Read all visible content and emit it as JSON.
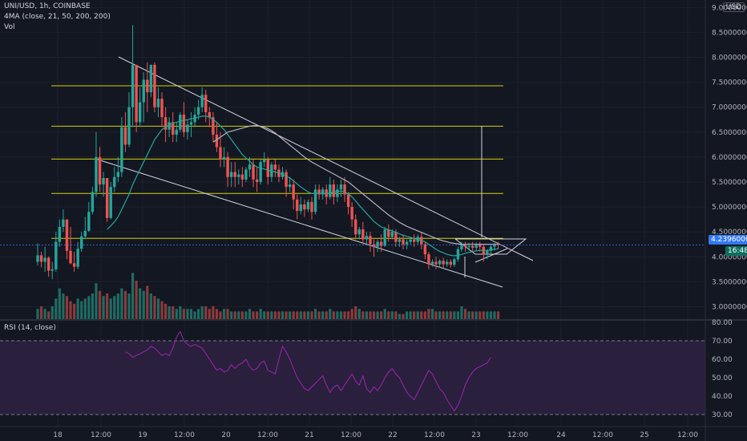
{
  "header": {
    "symbol_line": "UNI/USD, 1h, COINBASE",
    "ma_line": "4MA (close, 21, 50, 200, 200)",
    "vol_line": "Vol",
    "rsi_line": "RSI (14, close)",
    "currency": "USD"
  },
  "badges": {
    "last_price": "4.23960000",
    "countdown": "16:48"
  },
  "colors": {
    "background": "#131722",
    "up": "#26a69a",
    "down": "#ef5350",
    "horizontal_levels": "#d4d000",
    "trendlines": "#d1d4dc",
    "ma_fast": "#26a69a",
    "ma_slow": "#b2b5be",
    "rsi_line": "#9c27b0",
    "rsi_band": "#2a1f3d",
    "last_price": "#3179f5"
  },
  "chart_data": {
    "type": "candlestick",
    "price_axis": {
      "ticks": [
        "9.00000000",
        "8.50000000",
        "8.00000000",
        "7.50000000",
        "7.00000000",
        "6.50000000",
        "6.00000000",
        "5.50000000",
        "5.00000000",
        "4.50000000",
        "4.00000000",
        "3.50000000",
        "3.00000000"
      ],
      "range": [
        2.75,
        9.15
      ]
    },
    "time_axis": {
      "ticks": [
        "18",
        "12:00",
        "19",
        "12:00",
        "20",
        "12:00",
        "21",
        "12:00",
        "22",
        "12:00",
        "23",
        "12:00",
        "24",
        "12:00",
        "25",
        "12:00"
      ]
    },
    "rsi_axis": {
      "ticks": [
        "80.00",
        "70.00",
        "60.00",
        "50.00",
        "40.00",
        "30.00"
      ],
      "range": [
        30,
        80
      ],
      "band": [
        30,
        70
      ]
    },
    "horizontal_levels": [
      7.43,
      6.62,
      5.96,
      5.27,
      4.37
    ],
    "last_price": 4.2396,
    "candles": [
      [
        3.9,
        4.27,
        4.03,
        3.83
      ],
      [
        4.03,
        4.1,
        3.9,
        3.79
      ],
      [
        3.9,
        4.2,
        3.98,
        3.7
      ],
      [
        3.98,
        4.01,
        3.72,
        3.6
      ],
      [
        3.72,
        3.9,
        3.75,
        3.55
      ],
      [
        3.75,
        4.5,
        4.3,
        3.7
      ],
      [
        4.3,
        4.75,
        4.6,
        4.2
      ],
      [
        4.6,
        4.95,
        4.75,
        4.5
      ],
      [
        4.75,
        4.6,
        4.12,
        3.95
      ],
      [
        4.12,
        4.6,
        3.87,
        3.85
      ],
      [
        3.87,
        4.1,
        3.8,
        3.7
      ],
      [
        3.8,
        4.3,
        4.16,
        3.75
      ],
      [
        4.16,
        4.5,
        4.41,
        4.1
      ],
      [
        4.41,
        4.8,
        4.52,
        4.35
      ],
      [
        4.52,
        5.1,
        4.9,
        4.5
      ],
      [
        4.9,
        5.4,
        5.3,
        4.85
      ],
      [
        5.3,
        6.5,
        6.0,
        5.2
      ],
      [
        6.0,
        6.2,
        5.45,
        5.3
      ],
      [
        5.45,
        5.7,
        5.58,
        5.2
      ],
      [
        5.58,
        5.4,
        4.78,
        4.7
      ],
      [
        4.78,
        5.5,
        5.4,
        4.75
      ],
      [
        5.4,
        5.8,
        5.6,
        5.3
      ],
      [
        5.6,
        6.0,
        5.7,
        5.5
      ],
      [
        5.7,
        6.8,
        6.6,
        5.6
      ],
      [
        6.6,
        6.9,
        6.25,
        6.1
      ],
      [
        6.25,
        7.3,
        7.0,
        6.2
      ],
      [
        7.0,
        8.65,
        7.85,
        6.6
      ],
      [
        7.85,
        7.7,
        6.7,
        6.5
      ],
      [
        6.7,
        7.4,
        7.1,
        6.6
      ],
      [
        7.1,
        7.7,
        7.55,
        6.7
      ],
      [
        7.55,
        7.9,
        7.3,
        6.9
      ],
      [
        7.3,
        7.85,
        7.85,
        7.2
      ],
      [
        7.85,
        7.9,
        7.0,
        6.9
      ],
      [
        7.0,
        7.4,
        7.17,
        6.8
      ],
      [
        7.17,
        7.3,
        6.8,
        6.6
      ],
      [
        6.8,
        7.0,
        6.55,
        6.3
      ],
      [
        6.55,
        6.8,
        6.7,
        6.4
      ],
      [
        6.7,
        6.9,
        6.45,
        6.3
      ],
      [
        6.45,
        6.7,
        6.55,
        6.3
      ],
      [
        6.55,
        6.9,
        6.85,
        6.5
      ],
      [
        6.85,
        7.1,
        6.5,
        6.4
      ],
      [
        6.5,
        6.75,
        6.65,
        6.35
      ],
      [
        6.65,
        6.9,
        6.7,
        6.4
      ],
      [
        6.7,
        7.0,
        6.85,
        6.6
      ],
      [
        6.85,
        7.15,
        7.0,
        6.75
      ],
      [
        7.0,
        7.4,
        7.25,
        6.9
      ],
      [
        7.25,
        7.35,
        6.9,
        6.7
      ],
      [
        6.9,
        7.0,
        6.8,
        6.6
      ],
      [
        6.8,
        6.9,
        6.45,
        6.3
      ],
      [
        6.45,
        6.7,
        6.2,
        6.1
      ],
      [
        6.2,
        6.5,
        5.95,
        5.8
      ],
      [
        5.95,
        6.2,
        6.0,
        5.8
      ],
      [
        6.0,
        6.1,
        5.6,
        5.4
      ],
      [
        5.6,
        5.9,
        5.7,
        5.4
      ],
      [
        5.7,
        5.9,
        5.6,
        5.4
      ],
      [
        5.6,
        5.75,
        5.65,
        5.45
      ],
      [
        5.65,
        5.8,
        5.55,
        5.4
      ],
      [
        5.55,
        5.8,
        5.75,
        5.5
      ],
      [
        5.75,
        6.0,
        5.85,
        5.6
      ],
      [
        5.85,
        5.95,
        5.55,
        5.4
      ],
      [
        5.55,
        5.8,
        5.5,
        5.3
      ],
      [
        5.5,
        5.95,
        5.9,
        5.45
      ],
      [
        5.9,
        6.1,
        5.95,
        5.8
      ],
      [
        5.95,
        6.0,
        5.6,
        5.45
      ],
      [
        5.6,
        5.9,
        5.85,
        5.5
      ],
      [
        5.85,
        5.95,
        5.75,
        5.6
      ],
      [
        5.75,
        5.85,
        5.6,
        5.5
      ],
      [
        5.6,
        5.8,
        5.7,
        5.55
      ],
      [
        5.7,
        5.75,
        5.4,
        5.2
      ],
      [
        5.4,
        5.6,
        5.45,
        5.3
      ],
      [
        5.45,
        5.55,
        5.15,
        4.95
      ],
      [
        5.15,
        5.25,
        4.92,
        4.75
      ],
      [
        4.92,
        5.2,
        5.05,
        4.85
      ],
      [
        5.05,
        5.15,
        4.95,
        4.8
      ],
      [
        4.95,
        5.15,
        5.1,
        4.9
      ],
      [
        5.1,
        5.2,
        4.9,
        4.75
      ],
      [
        4.9,
        5.45,
        5.35,
        4.85
      ],
      [
        5.35,
        5.45,
        5.25,
        5.15
      ],
      [
        5.25,
        5.4,
        5.35,
        5.15
      ],
      [
        5.35,
        5.45,
        5.2,
        5.05
      ],
      [
        5.2,
        5.6,
        5.45,
        5.15
      ],
      [
        5.45,
        5.55,
        5.2,
        5.05
      ],
      [
        5.2,
        5.45,
        5.35,
        5.1
      ],
      [
        5.35,
        5.55,
        5.45,
        5.2
      ],
      [
        5.45,
        5.6,
        5.25,
        5.1
      ],
      [
        5.25,
        5.3,
        5.0,
        4.85
      ],
      [
        5.0,
        5.1,
        4.75,
        4.6
      ],
      [
        4.75,
        4.85,
        4.45,
        4.35
      ],
      [
        4.45,
        4.6,
        4.55,
        4.35
      ],
      [
        4.55,
        4.7,
        4.35,
        4.25
      ],
      [
        4.35,
        4.5,
        4.42,
        4.25
      ],
      [
        4.42,
        4.5,
        4.25,
        4.1
      ],
      [
        4.25,
        4.35,
        4.2,
        4.0
      ],
      [
        4.2,
        4.35,
        4.3,
        4.1
      ],
      [
        4.3,
        4.45,
        4.22,
        4.1
      ],
      [
        4.22,
        4.6,
        4.55,
        4.2
      ],
      [
        4.55,
        4.65,
        4.4,
        4.3
      ],
      [
        4.4,
        4.55,
        4.5,
        4.35
      ],
      [
        4.5,
        4.55,
        4.3,
        4.2
      ],
      [
        4.3,
        4.4,
        4.35,
        4.2
      ],
      [
        4.35,
        4.45,
        4.25,
        4.15
      ],
      [
        4.25,
        4.35,
        4.3,
        4.15
      ],
      [
        4.3,
        4.4,
        4.35,
        4.25
      ],
      [
        4.35,
        4.45,
        4.3,
        4.2
      ],
      [
        4.3,
        4.45,
        4.4,
        4.25
      ],
      [
        4.4,
        4.5,
        4.25,
        4.15
      ],
      [
        4.25,
        4.3,
        4.05,
        3.95
      ],
      [
        4.05,
        4.1,
        3.85,
        3.75
      ],
      [
        3.85,
        3.95,
        3.9,
        3.8
      ],
      [
        3.9,
        4.0,
        3.85,
        3.75
      ],
      [
        3.85,
        3.95,
        3.92,
        3.8
      ],
      [
        3.92,
        3.98,
        3.85,
        3.78
      ],
      [
        3.85,
        3.95,
        3.9,
        3.8
      ],
      [
        3.9,
        3.95,
        3.84,
        3.78
      ],
      [
        3.84,
        3.98,
        3.95,
        3.8
      ],
      [
        3.95,
        4.2,
        4.15,
        3.9
      ],
      [
        4.15,
        4.3,
        4.25,
        4.1
      ],
      [
        4.25,
        4.3,
        4.2,
        4.1
      ],
      [
        4.2,
        4.28,
        4.22,
        4.12
      ],
      [
        4.22,
        4.3,
        4.18,
        4.1
      ],
      [
        4.18,
        4.28,
        4.24,
        4.12
      ],
      [
        4.24,
        4.3,
        4.2,
        4.1
      ],
      [
        4.2,
        4.25,
        4.05,
        3.9
      ],
      [
        4.05,
        4.15,
        4.12,
        3.95
      ],
      [
        4.12,
        4.25,
        4.2,
        4.05
      ],
      [
        4.2,
        4.28,
        4.25,
        4.12
      ],
      [
        4.25,
        4.3,
        4.24,
        4.15
      ]
    ],
    "volumes": [
      4,
      5,
      4,
      3,
      5,
      8,
      12,
      10,
      9,
      7,
      6,
      8,
      7,
      8,
      9,
      10,
      14,
      11,
      9,
      10,
      8,
      9,
      10,
      12,
      11,
      10,
      18,
      15,
      12,
      11,
      13,
      10,
      9,
      8,
      7,
      6,
      5,
      5,
      4,
      5,
      4,
      4,
      4,
      3,
      4,
      5,
      5,
      4,
      5,
      4,
      3,
      4,
      4,
      3,
      3,
      3,
      3,
      3,
      4,
      3,
      3,
      4,
      3,
      3,
      3,
      3,
      3,
      3,
      3,
      3,
      3,
      3,
      3,
      3,
      3,
      3,
      4,
      3,
      3,
      3,
      4,
      3,
      3,
      3,
      3,
      3,
      4,
      5,
      4,
      3,
      3,
      3,
      3,
      3,
      3,
      4,
      3,
      3,
      3,
      2,
      2,
      3,
      3,
      3,
      3,
      3,
      3,
      4,
      4,
      3,
      3,
      3,
      3,
      3,
      3,
      3,
      5,
      4,
      3,
      3,
      3,
      3,
      3,
      3,
      3,
      3,
      3
    ],
    "ma_fast": [
      null,
      null,
      null,
      null,
      null,
      null,
      null,
      null,
      null,
      null,
      null,
      null,
      null,
      null,
      null,
      null,
      null,
      null,
      null,
      4.55,
      4.62,
      4.7,
      4.8,
      4.95,
      5.1,
      5.25,
      5.45,
      5.6,
      5.75,
      5.9,
      6.05,
      6.2,
      6.35,
      6.45,
      6.55,
      6.6,
      6.65,
      6.68,
      6.7,
      6.72,
      6.74,
      6.75,
      6.77,
      6.78,
      6.8,
      6.82,
      6.82,
      6.8,
      6.75,
      6.7,
      6.62,
      6.55,
      6.45,
      6.35,
      6.25,
      6.15,
      6.05,
      5.98,
      5.92,
      5.85,
      5.8,
      5.78,
      5.76,
      5.74,
      5.72,
      5.7,
      5.68,
      5.65,
      5.62,
      5.58,
      5.52,
      5.46,
      5.4,
      5.35,
      5.3,
      5.27,
      5.27,
      5.27,
      5.27,
      5.27,
      5.28,
      5.3,
      5.31,
      5.32,
      5.3,
      5.26,
      5.2,
      5.12,
      5.03,
      4.95,
      4.87,
      4.79,
      4.71,
      4.65,
      4.6,
      4.57,
      4.54,
      4.52,
      4.49,
      4.46,
      4.43,
      4.41,
      4.39,
      4.37,
      4.35,
      4.33,
      4.3,
      4.25,
      4.2,
      4.15,
      4.11,
      4.08,
      4.05,
      4.03,
      4.02,
      4.03,
      4.05,
      4.07,
      4.09,
      4.1,
      4.12,
      4.13,
      4.13,
      4.13,
      4.14,
      4.15,
      4.16
    ],
    "ma_slow": [
      null,
      null,
      null,
      null,
      null,
      null,
      null,
      null,
      null,
      null,
      null,
      null,
      null,
      null,
      null,
      null,
      null,
      null,
      null,
      null,
      null,
      null,
      null,
      null,
      null,
      null,
      null,
      null,
      null,
      null,
      null,
      null,
      null,
      null,
      null,
      null,
      null,
      null,
      null,
      null,
      null,
      null,
      null,
      null,
      null,
      null,
      null,
      null,
      6.3,
      6.35,
      6.4,
      6.45,
      6.5,
      6.52,
      6.54,
      6.56,
      6.58,
      6.6,
      6.62,
      6.63,
      6.63,
      6.62,
      6.6,
      6.57,
      6.53,
      6.48,
      6.42,
      6.36,
      6.3,
      6.24,
      6.18,
      6.12,
      6.06,
      6.0,
      5.95,
      5.9,
      5.86,
      5.82,
      5.78,
      5.74,
      5.7,
      5.66,
      5.62,
      5.58,
      5.54,
      5.5,
      5.44,
      5.38,
      5.32,
      5.26,
      5.2,
      5.14,
      5.08,
      5.02,
      4.96,
      4.9,
      4.84,
      4.79,
      4.74,
      4.69,
      4.65,
      4.61,
      4.58,
      4.55,
      4.52,
      4.49,
      4.46,
      4.43,
      4.4,
      4.37,
      4.34,
      4.32,
      4.3,
      4.28,
      4.27,
      4.26,
      4.25,
      4.25,
      4.25,
      4.25,
      4.25,
      4.25,
      4.25,
      4.25,
      4.25,
      4.25,
      4.25
    ],
    "rsi": [
      null,
      null,
      null,
      null,
      null,
      null,
      null,
      null,
      null,
      null,
      null,
      null,
      null,
      null,
      null,
      null,
      null,
      null,
      null,
      null,
      null,
      null,
      null,
      null,
      64,
      63,
      61,
      62,
      63,
      64,
      65,
      67,
      66,
      64,
      62,
      63,
      62,
      66,
      72,
      75,
      70,
      68,
      67,
      68,
      67,
      66,
      63,
      60,
      57,
      54,
      55,
      53,
      54,
      57,
      55,
      57,
      58,
      60,
      56,
      54,
      55,
      58,
      59,
      54,
      53,
      52,
      60,
      67,
      64,
      60,
      55,
      50,
      47,
      44,
      43,
      45,
      47,
      49,
      51,
      46,
      42,
      45,
      46,
      43,
      46,
      49,
      52,
      48,
      46,
      51,
      44,
      42,
      45,
      43,
      46,
      50,
      53,
      55,
      52,
      50,
      46,
      42,
      40,
      38,
      42,
      46,
      50,
      54,
      52,
      48,
      44,
      42,
      38,
      35,
      32,
      35,
      40,
      46,
      50,
      53,
      55,
      56,
      57,
      58,
      61
    ]
  }
}
